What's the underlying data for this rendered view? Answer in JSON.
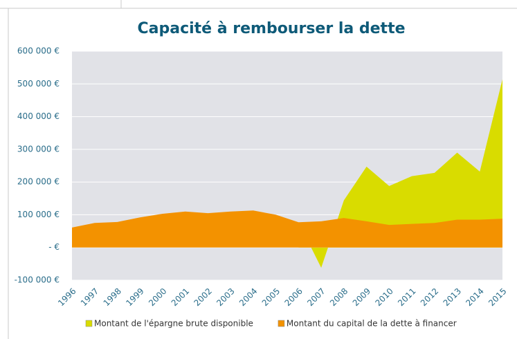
{
  "chart_data": {
    "type": "area",
    "title": "Capacité à rembourser la dette",
    "categories": [
      "1996",
      "1997",
      "1998",
      "1999",
      "2000",
      "2001",
      "2002",
      "2003",
      "2004",
      "2005",
      "2006",
      "2007",
      "2008",
      "2009",
      "2010",
      "2011",
      "2012",
      "2013",
      "2014",
      "2015"
    ],
    "series": [
      {
        "name": "Montant de l'épargne brute disponible",
        "color": "#d9dc00",
        "values": [
          null,
          null,
          null,
          null,
          null,
          null,
          null,
          null,
          null,
          null,
          77000,
          -62000,
          144000,
          247000,
          188000,
          218000,
          228000,
          290000,
          232000,
          514000
        ]
      },
      {
        "name": "Montant du capital de la dette à financer",
        "color": "#f39200",
        "values": [
          61000,
          75000,
          78000,
          92000,
          103000,
          110000,
          105000,
          110000,
          113000,
          100000,
          77000,
          80000,
          90000,
          80000,
          69000,
          72000,
          75000,
          85000,
          85000,
          88000
        ]
      }
    ],
    "ylim": [
      -100000,
      600000
    ],
    "yticks": [
      {
        "value": -100000,
        "label": "-100 000 €"
      },
      {
        "value": 0,
        "label": "-   €"
      },
      {
        "value": 100000,
        "label": "100 000 €"
      },
      {
        "value": 200000,
        "label": "200 000 €"
      },
      {
        "value": 300000,
        "label": "300 000 €"
      },
      {
        "value": 400000,
        "label": "400 000 €"
      },
      {
        "value": 500000,
        "label": "500 000 €"
      },
      {
        "value": 600000,
        "label": "600 000 €"
      }
    ],
    "grid": true,
    "legend": "bottom"
  }
}
